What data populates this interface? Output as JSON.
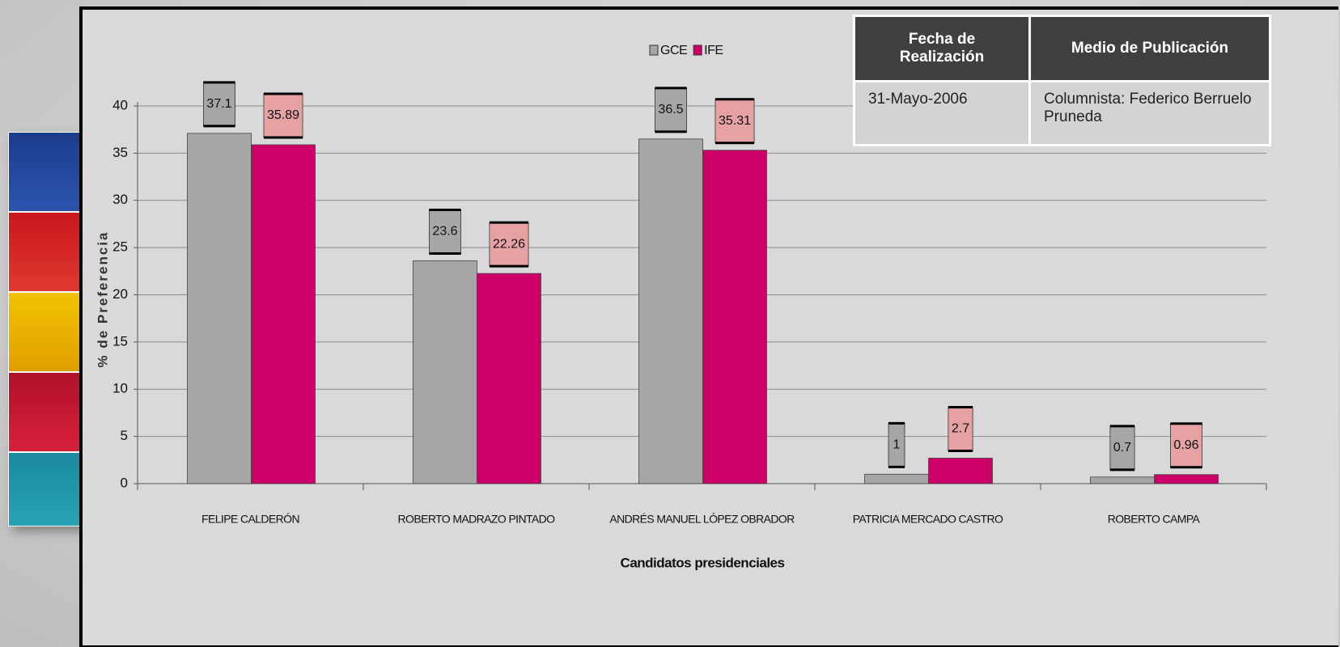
{
  "chart_data": {
    "type": "bar",
    "y_label": "% de Preferencia",
    "x_label": "Candidatos presidenciales",
    "categories": [
      "FELIPE CALDERÓN",
      "ROBERTO MADRAZO PINTADO",
      "ANDRÉS MANUEL LÓPEZ OBRADOR",
      "PATRICIA MERCADO CASTRO",
      "ROBERTO CAMPA"
    ],
    "series": [
      {
        "name": "GCE",
        "color": "#a6a6a6",
        "label_color": "#a6a6a6",
        "values": [
          37.1,
          23.6,
          36.5,
          1,
          0.7
        ]
      },
      {
        "name": "IFE",
        "color": "#cc0066",
        "label_color": "#e6a1a3",
        "values": [
          35.89,
          22.26,
          35.31,
          2.7,
          0.96
        ]
      }
    ],
    "ylim": [
      0,
      40
    ],
    "yticks": [
      0,
      5,
      10,
      15,
      20,
      25,
      30,
      35,
      40
    ],
    "grid": true
  },
  "table": {
    "header": [
      "Fecha de Realización",
      "Medio de Publicación"
    ],
    "rows": [
      [
        "31-Mayo-2006",
        "Columnista: Federico Berruelo Pruneda"
      ]
    ]
  }
}
